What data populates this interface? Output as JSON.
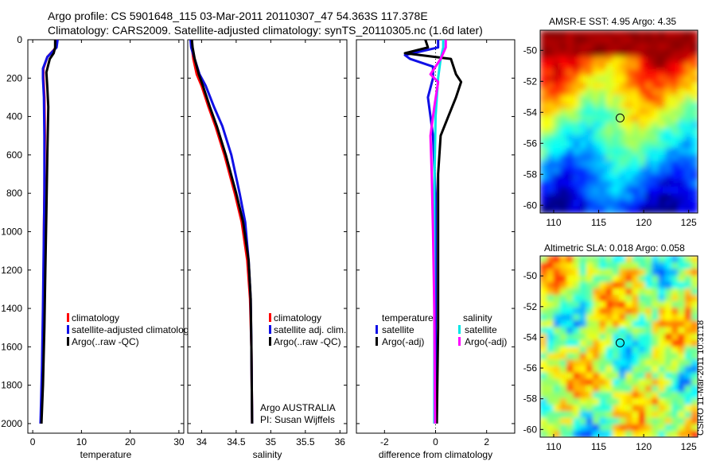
{
  "header": {
    "title_line1": "Argo profile: CS 5901648_115 03-Mar-2011 20110307_47 54.363S 117.378E",
    "title_line2": "Climatology: CARS2009. Satellite-adjusted climatology: synTS_20110305.nc (1.6d later)"
  },
  "footer": {
    "stamp": "CSIRO 11-Mar-2011 10:31:18"
  },
  "colors": {
    "red": "#ff0000",
    "blue": "#1010e6",
    "black": "#000000",
    "cyan": "#00e6e6",
    "magenta": "#ff00ff"
  },
  "chart_data": [
    {
      "type": "line",
      "id": "temperature",
      "xlabel": "temperature",
      "xlim": [
        -1,
        31
      ],
      "ylim": [
        0,
        2050
      ],
      "xticks": [
        0,
        10,
        20,
        30
      ],
      "yticks": [
        0,
        200,
        400,
        600,
        800,
        1000,
        1200,
        1400,
        1600,
        1800,
        2000
      ],
      "y_reversed": true,
      "legend": {
        "position": "center-right",
        "entries": [
          "climatology",
          "satellite-adjusted climatolog",
          "Argo(..raw -QC)"
        ]
      },
      "series": [
        {
          "name": "climatology",
          "color": "red",
          "points": [
            [
              5.0,
              0
            ],
            [
              4.8,
              40
            ],
            [
              3.0,
              90
            ],
            [
              2.2,
              150
            ],
            [
              2.2,
              200
            ],
            [
              2.4,
              300
            ],
            [
              2.5,
              500
            ],
            [
              2.4,
              800
            ],
            [
              2.3,
              1000
            ],
            [
              2.2,
              1400
            ],
            [
              2.0,
              1700
            ],
            [
              1.7,
              2000
            ]
          ]
        },
        {
          "name": "satellite-adjusted climatology",
          "color": "blue",
          "points": [
            [
              5.1,
              0
            ],
            [
              4.9,
              40
            ],
            [
              3.0,
              90
            ],
            [
              2.1,
              150
            ],
            [
              2.1,
              200
            ],
            [
              2.3,
              300
            ],
            [
              2.4,
              500
            ],
            [
              2.4,
              800
            ],
            [
              2.3,
              1000
            ],
            [
              2.1,
              1400
            ],
            [
              1.9,
              1700
            ],
            [
              1.6,
              2000
            ]
          ]
        },
        {
          "name": "Argo(..raw -QC)",
          "color": "black",
          "points": [
            [
              4.6,
              0
            ],
            [
              4.6,
              40
            ],
            [
              4.3,
              70
            ],
            [
              3.5,
              100
            ],
            [
              2.8,
              170
            ],
            [
              3.0,
              250
            ],
            [
              3.2,
              350
            ],
            [
              3.0,
              600
            ],
            [
              2.8,
              900
            ],
            [
              2.6,
              1200
            ],
            [
              2.4,
              1500
            ],
            [
              2.1,
              1800
            ],
            [
              1.8,
              2000
            ]
          ]
        }
      ]
    },
    {
      "type": "line",
      "id": "salinity",
      "xlabel": "salinity",
      "xlim": [
        33.8,
        36.1
      ],
      "ylim": [
        0,
        2050
      ],
      "xticks": [
        34,
        34.5,
        35,
        35.5,
        36
      ],
      "xtick_labels": [
        "34",
        "34.5",
        "35",
        "35.5",
        "36"
      ],
      "y_reversed": true,
      "legend": {
        "position": "center-right",
        "entries": [
          "climatology",
          "satellite adj. clim.",
          "Argo(..raw -QC)"
        ]
      },
      "annotations": [
        "Argo AUSTRALIA",
        "PI: Susan Wijffels"
      ],
      "series": [
        {
          "name": "climatology",
          "color": "red",
          "points": [
            [
              33.85,
              0
            ],
            [
              33.86,
              40
            ],
            [
              33.88,
              100
            ],
            [
              33.93,
              180
            ],
            [
              34.0,
              240
            ],
            [
              34.1,
              350
            ],
            [
              34.2,
              450
            ],
            [
              34.33,
              600
            ],
            [
              34.48,
              800
            ],
            [
              34.58,
              950
            ],
            [
              34.66,
              1150
            ],
            [
              34.7,
              1350
            ],
            [
              34.72,
              1600
            ],
            [
              34.73,
              2000
            ]
          ]
        },
        {
          "name": "satellite adj. clim.",
          "color": "blue",
          "points": [
            [
              33.84,
              0
            ],
            [
              33.85,
              40
            ],
            [
              33.9,
              100
            ],
            [
              33.97,
              180
            ],
            [
              34.06,
              240
            ],
            [
              34.18,
              350
            ],
            [
              34.3,
              450
            ],
            [
              34.43,
              600
            ],
            [
              34.55,
              800
            ],
            [
              34.63,
              950
            ],
            [
              34.68,
              1150
            ],
            [
              34.71,
              1350
            ],
            [
              34.72,
              1600
            ],
            [
              34.73,
              2000
            ]
          ]
        },
        {
          "name": "Argo(..raw -QC)",
          "color": "black",
          "points": [
            [
              33.86,
              0
            ],
            [
              33.87,
              40
            ],
            [
              33.9,
              100
            ],
            [
              33.96,
              180
            ],
            [
              34.02,
              240
            ],
            [
              34.12,
              350
            ],
            [
              34.22,
              450
            ],
            [
              34.35,
              600
            ],
            [
              34.5,
              800
            ],
            [
              34.6,
              950
            ],
            [
              34.68,
              1150
            ],
            [
              34.71,
              1350
            ],
            [
              34.72,
              1600
            ],
            [
              34.73,
              2000
            ]
          ]
        }
      ]
    },
    {
      "type": "line",
      "id": "difference",
      "xlabel": "difference from climatology",
      "xlim": [
        -3.1,
        3.1
      ],
      "ylim": [
        0,
        2050
      ],
      "xticks": [
        -2,
        0,
        2
      ],
      "y_reversed": true,
      "zero_line": true,
      "legend": {
        "position": "center",
        "groups": [
          {
            "heading": "temperature",
            "entries": [
              "satellite",
              "Argo(-adj)"
            ]
          },
          {
            "heading": "salinity",
            "entries": [
              "satellite",
              "Argo(-adj)"
            ]
          }
        ]
      },
      "series": [
        {
          "name": "temperature satellite",
          "color": "blue",
          "points": [
            [
              0.1,
              0
            ],
            [
              0.1,
              40
            ],
            [
              -1.2,
              80
            ],
            [
              -1.0,
              100
            ],
            [
              -0.1,
              140
            ],
            [
              -0.1,
              200
            ],
            [
              -0.3,
              300
            ],
            [
              -0.1,
              500
            ],
            [
              0,
              800
            ],
            [
              0,
              1100
            ],
            [
              0,
              1500
            ],
            [
              0,
              2000
            ]
          ]
        },
        {
          "name": "temperature Argo(-adj)",
          "color": "black",
          "points": [
            [
              -0.4,
              0
            ],
            [
              -0.3,
              40
            ],
            [
              -1.2,
              70
            ],
            [
              0.6,
              100
            ],
            [
              0.8,
              180
            ],
            [
              1.0,
              220
            ],
            [
              0.8,
              300
            ],
            [
              0.5,
              400
            ],
            [
              0.2,
              500
            ],
            [
              0.1,
              700
            ],
            [
              0.1,
              1000
            ],
            [
              0.1,
              1500
            ],
            [
              0.05,
              2000
            ]
          ]
        },
        {
          "name": "salinity satellite",
          "color": "cyan",
          "points": [
            [
              0.3,
              0
            ],
            [
              0.3,
              40
            ],
            [
              0.2,
              100
            ],
            [
              0.1,
              200
            ],
            [
              0,
              400
            ],
            [
              -0.05,
              800
            ],
            [
              -0.05,
              1200
            ],
            [
              -0.05,
              1600
            ],
            [
              -0.05,
              2000
            ]
          ]
        },
        {
          "name": "salinity Argo(-adj)",
          "color": "magenta",
          "points": [
            [
              0.4,
              0
            ],
            [
              0.4,
              40
            ],
            [
              0.2,
              100
            ],
            [
              -0.2,
              180
            ],
            [
              0.1,
              220
            ],
            [
              -0.05,
              350
            ],
            [
              -0.2,
              500
            ],
            [
              -0.15,
              700
            ],
            [
              -0.1,
              1000
            ],
            [
              -0.05,
              1400
            ],
            [
              -0.02,
              2000
            ]
          ]
        }
      ]
    },
    {
      "type": "heatmap",
      "id": "sst_map",
      "title": "AMSR-E SST: 4.95 Argo: 4.35",
      "xlim": [
        108.5,
        126
      ],
      "ylim": [
        -60.5,
        -48.7
      ],
      "xticks": [
        110,
        115,
        120,
        125
      ],
      "yticks": [
        -50,
        -52,
        -54,
        -56,
        -58,
        -60
      ],
      "marker": {
        "lon": 117.378,
        "lat": -54.363
      }
    },
    {
      "type": "heatmap",
      "id": "sla_map",
      "title": "Altimetric SLA: 0.018 Argo: 0.058",
      "xlim": [
        108.5,
        126
      ],
      "ylim": [
        -60.5,
        -48.7
      ],
      "xticks": [
        110,
        115,
        120,
        125
      ],
      "yticks": [
        -50,
        -52,
        -54,
        -56,
        -58,
        -60
      ],
      "marker": {
        "lon": 117.378,
        "lat": -54.363
      }
    }
  ]
}
